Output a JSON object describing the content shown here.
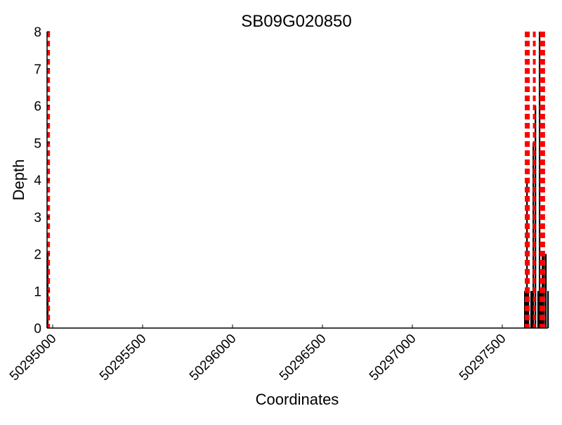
{
  "chart_data": {
    "type": "bar",
    "title": "SB09G020850",
    "xlabel": "Coordinates",
    "ylabel": "Depth",
    "xlim": [
      50294969,
      50297760
    ],
    "ylim": [
      0,
      8
    ],
    "xticks": [
      50295000,
      50295500,
      50296000,
      50296500,
      50297000,
      50297500
    ],
    "xtick_labels": [
      "50295000",
      "50295500",
      "50296000",
      "50296500",
      "50297000",
      "50297500"
    ],
    "yticks": [
      0,
      1,
      2,
      3,
      4,
      5,
      6,
      7,
      8
    ],
    "ytick_labels": [
      "0",
      "1",
      "2",
      "3",
      "4",
      "5",
      "6",
      "7",
      "8"
    ],
    "grid": false,
    "series": [
      {
        "x": [
          50294970,
          50294972,
          50297625,
          50297630,
          50297637,
          50297645,
          50297660,
          50297666,
          50297672,
          50297684,
          50297699,
          50297707,
          50297715,
          50297723,
          50297732,
          50297742,
          50297754
        ],
        "values": [
          2,
          2,
          1,
          1,
          4,
          1,
          1,
          1,
          5,
          6,
          1,
          8,
          1,
          2,
          2,
          2,
          1
        ],
        "color": "#000000"
      }
    ],
    "vlines": {
      "x": [
        50294977,
        50297633,
        50297645,
        50297678,
        50297715,
        50297730
      ],
      "color": "#ff0000",
      "style": "dashed"
    }
  }
}
